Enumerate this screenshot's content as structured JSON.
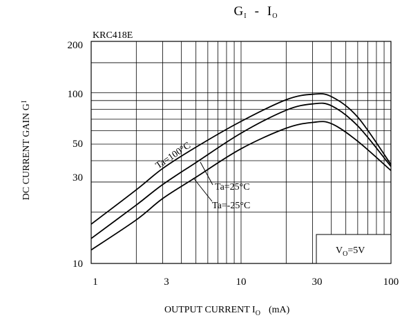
{
  "chart_data": {
    "type": "line",
    "title": {
      "main": "G",
      "sub1": "I",
      "sep": "-",
      "main2": "I",
      "sub2": "O"
    },
    "part_number": "KRC418E",
    "xlabel": {
      "text": "OUTPUT CURRENT I",
      "sub": "O",
      "unit": "(mA)"
    },
    "ylabel": {
      "text": "DC CURRENT GAIN G",
      "sub": "I"
    },
    "x_scale": "log",
    "y_scale": "log",
    "xlim": [
      1,
      100
    ],
    "ylim": [
      10,
      200
    ],
    "x_ticks": [
      "1",
      "3",
      "10",
      "30",
      "100"
    ],
    "y_ticks": [
      "10",
      "30",
      "50",
      "100",
      "200"
    ],
    "grid": true,
    "condition": {
      "text": "V",
      "sub": "O",
      "rest": "=5V"
    },
    "series": [
      {
        "name": "Ta=100°C",
        "x": [
          1,
          2,
          3,
          5,
          10,
          20,
          30,
          40,
          60,
          100
        ],
        "y": [
          17,
          27,
          36,
          48,
          68,
          91,
          98,
          95,
          72,
          38
        ]
      },
      {
        "name": "Ta=25°C",
        "x": [
          1,
          2,
          3,
          5,
          10,
          20,
          30,
          40,
          60,
          100
        ],
        "y": [
          14,
          22,
          29,
          39,
          58,
          79,
          86,
          84,
          64,
          37
        ]
      },
      {
        "name": "Ta=-25°C",
        "x": [
          1,
          2,
          3,
          5,
          10,
          20,
          30,
          40,
          60,
          100
        ],
        "y": [
          12,
          18,
          24,
          32,
          47,
          62,
          67,
          66,
          52,
          35
        ]
      }
    ]
  }
}
